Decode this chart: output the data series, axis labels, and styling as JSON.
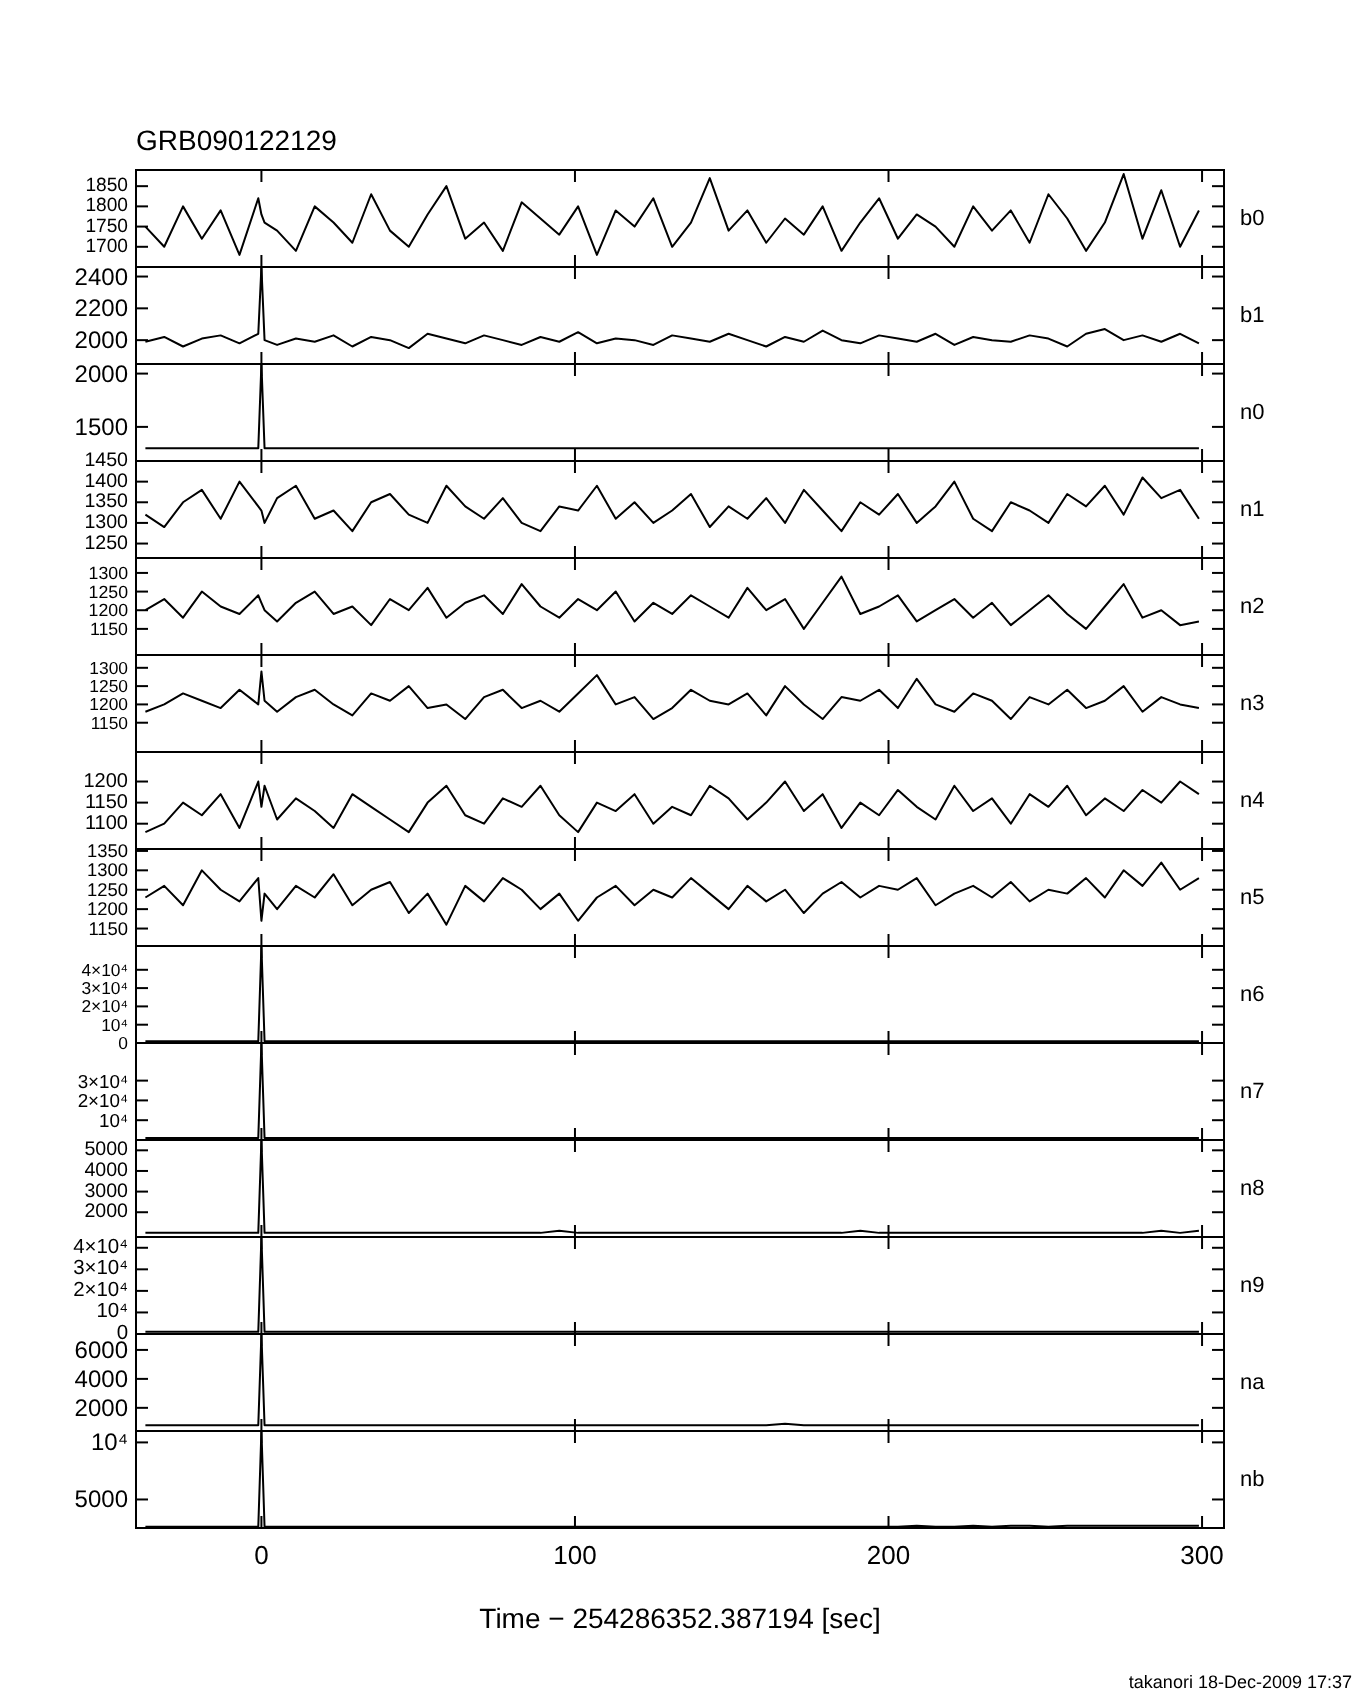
{
  "chart_data": [
    {
      "type": "line",
      "title": "GRB090122129",
      "y2label": "b0",
      "tick_labels": "y",
      "xlim": [
        -40,
        307
      ],
      "xticks": [
        0,
        100,
        200,
        300
      ],
      "ylim": [
        1650,
        1890
      ],
      "yticks": [
        1700,
        1750,
        1800,
        1850
      ],
      "x": [
        -37,
        -31,
        -25,
        -19,
        -13,
        -7,
        -1,
        0,
        1,
        5,
        11,
        17,
        23,
        29,
        35,
        41,
        47,
        53,
        59,
        65,
        71,
        77,
        83,
        89,
        95,
        101,
        107,
        113,
        119,
        125,
        131,
        137,
        143,
        149,
        155,
        161,
        167,
        173,
        179,
        185,
        191,
        197,
        203,
        209,
        215,
        221,
        227,
        233,
        239,
        245,
        251,
        257,
        263,
        269,
        275,
        281,
        287,
        293,
        299
      ],
      "series": [
        {
          "color": "#000000",
          "values": [
            1750,
            1700,
            1800,
            1720,
            1790,
            1680,
            1820,
            1780,
            1760,
            1740,
            1690,
            1800,
            1760,
            1710,
            1830,
            1740,
            1700,
            1780,
            1850,
            1720,
            1760,
            1690,
            1810,
            1770,
            1730,
            1800,
            1680,
            1790,
            1750,
            1820,
            1700,
            1760,
            1870,
            1740,
            1790,
            1710,
            1770,
            1730,
            1800,
            1690,
            1760,
            1820,
            1720,
            1780,
            1750,
            1700,
            1800,
            1740,
            1790,
            1710,
            1830,
            1770,
            1690,
            1760,
            1880,
            1720,
            1840,
            1700,
            1790
          ]
        }
      ]
    },
    {
      "type": "line",
      "y2label": "b1",
      "tick_labels": "y",
      "xlim": [
        -40,
        307
      ],
      "xticks": [
        0,
        100,
        200,
        300
      ],
      "ylim": [
        1850,
        2460
      ],
      "yticks": [
        2000,
        2200,
        2400
      ],
      "x": [
        -37,
        -31,
        -25,
        -19,
        -13,
        -7,
        -1,
        0,
        1,
        5,
        11,
        17,
        23,
        29,
        35,
        41,
        47,
        53,
        59,
        65,
        71,
        77,
        83,
        89,
        95,
        101,
        107,
        113,
        119,
        125,
        131,
        137,
        143,
        149,
        155,
        161,
        167,
        173,
        179,
        185,
        191,
        197,
        203,
        209,
        215,
        221,
        227,
        233,
        239,
        245,
        251,
        257,
        263,
        269,
        275,
        281,
        287,
        293,
        299
      ],
      "series": [
        {
          "color": "#000000",
          "values": [
            1990,
            2020,
            1960,
            2010,
            2030,
            1980,
            2040,
            2460,
            2000,
            1970,
            2010,
            1990,
            2030,
            1960,
            2020,
            2000,
            1950,
            2040,
            2010,
            1980,
            2030,
            2000,
            1970,
            2020,
            1990,
            2050,
            1980,
            2010,
            2000,
            1970,
            2030,
            2010,
            1990,
            2040,
            2000,
            1960,
            2020,
            1990,
            2060,
            2000,
            1980,
            2030,
            2010,
            1990,
            2040,
            1970,
            2020,
            2000,
            1990,
            2030,
            2010,
            1960,
            2040,
            2070,
            2000,
            2030,
            1990,
            2040,
            1980
          ]
        }
      ]
    },
    {
      "type": "line",
      "y2label": "n0",
      "tick_labels": "y",
      "xlim": [
        -40,
        307
      ],
      "xticks": [
        0,
        100,
        200,
        300
      ],
      "ylim": [
        1180,
        2090
      ],
      "yticks": [
        1500,
        2000
      ],
      "x": [
        -37,
        -31,
        -25,
        -19,
        -13,
        -7,
        -1,
        0,
        1,
        5,
        11,
        17,
        23,
        29,
        35,
        41,
        47,
        53,
        59,
        65,
        71,
        77,
        83,
        89,
        95,
        101,
        107,
        113,
        119,
        125,
        131,
        137,
        143,
        149,
        155,
        161,
        167,
        173,
        179,
        185,
        191,
        197,
        203,
        209,
        215,
        221,
        227,
        233,
        239,
        245,
        251,
        257,
        263,
        269,
        275,
        281,
        287,
        293,
        299
      ],
      "series": [
        {
          "color": "#000000",
          "values": [
            1300,
            1300,
            1300,
            1300,
            1300,
            1300,
            1300,
            2090,
            1300,
            1300,
            1300,
            1300,
            1300,
            1300,
            1300,
            1300,
            1300,
            1300,
            1300,
            1300,
            1300,
            1300,
            1300,
            1300,
            1300,
            1300,
            1300,
            1300,
            1300,
            1300,
            1300,
            1300,
            1300,
            1300,
            1300,
            1300,
            1300,
            1300,
            1300,
            1300,
            1300,
            1300,
            1300,
            1300,
            1300,
            1300,
            1300,
            1300,
            1300,
            1300,
            1300,
            1300,
            1300,
            1300,
            1300,
            1300,
            1300,
            1300,
            1300
          ]
        }
      ]
    },
    {
      "type": "line",
      "y2label": "n1",
      "tick_labels": "y",
      "xlim": [
        -40,
        307
      ],
      "xticks": [
        0,
        100,
        200,
        300
      ],
      "ylim": [
        1215,
        1450
      ],
      "yticks": [
        1250,
        1300,
        1350,
        1400,
        1450
      ],
      "x": [
        -37,
        -31,
        -25,
        -19,
        -13,
        -7,
        -1,
        0,
        1,
        5,
        11,
        17,
        23,
        29,
        35,
        41,
        47,
        53,
        59,
        65,
        71,
        77,
        83,
        89,
        95,
        101,
        107,
        113,
        119,
        125,
        131,
        137,
        143,
        149,
        155,
        161,
        167,
        173,
        179,
        185,
        191,
        197,
        203,
        209,
        215,
        221,
        227,
        233,
        239,
        245,
        251,
        257,
        263,
        269,
        275,
        281,
        287,
        293,
        299
      ],
      "series": [
        {
          "color": "#000000",
          "values": [
            1320,
            1290,
            1350,
            1380,
            1310,
            1400,
            1340,
            1330,
            1300,
            1360,
            1390,
            1310,
            1330,
            1280,
            1350,
            1370,
            1320,
            1300,
            1390,
            1340,
            1310,
            1360,
            1300,
            1280,
            1340,
            1330,
            1390,
            1310,
            1350,
            1300,
            1330,
            1370,
            1290,
            1340,
            1310,
            1360,
            1300,
            1380,
            1330,
            1280,
            1350,
            1320,
            1370,
            1300,
            1340,
            1400,
            1310,
            1280,
            1350,
            1330,
            1300,
            1370,
            1340,
            1390,
            1320,
            1410,
            1360,
            1380,
            1310
          ]
        }
      ]
    },
    {
      "type": "line",
      "y2label": "n2",
      "tick_labels": "y",
      "xlim": [
        -40,
        307
      ],
      "xticks": [
        0,
        100,
        200,
        300
      ],
      "ylim": [
        1080,
        1340
      ],
      "yticks": [
        1150,
        1200,
        1250,
        1300
      ],
      "x": [
        -37,
        -31,
        -25,
        -19,
        -13,
        -7,
        -1,
        0,
        1,
        5,
        11,
        17,
        23,
        29,
        35,
        41,
        47,
        53,
        59,
        65,
        71,
        77,
        83,
        89,
        95,
        101,
        107,
        113,
        119,
        125,
        131,
        137,
        143,
        149,
        155,
        161,
        167,
        173,
        179,
        185,
        191,
        197,
        203,
        209,
        215,
        221,
        227,
        233,
        239,
        245,
        251,
        257,
        263,
        269,
        275,
        281,
        287,
        293,
        299
      ],
      "series": [
        {
          "color": "#000000",
          "values": [
            1200,
            1230,
            1180,
            1250,
            1210,
            1190,
            1240,
            1220,
            1200,
            1170,
            1220,
            1250,
            1190,
            1210,
            1160,
            1230,
            1200,
            1260,
            1180,
            1220,
            1240,
            1190,
            1270,
            1210,
            1180,
            1230,
            1200,
            1250,
            1170,
            1220,
            1190,
            1240,
            1210,
            1180,
            1260,
            1200,
            1230,
            1150,
            1220,
            1290,
            1190,
            1210,
            1240,
            1170,
            1200,
            1230,
            1180,
            1220,
            1160,
            1200,
            1240,
            1190,
            1150,
            1210,
            1270,
            1180,
            1200,
            1160,
            1170
          ]
        }
      ]
    },
    {
      "type": "line",
      "y2label": "n3",
      "tick_labels": "y",
      "xlim": [
        -40,
        307
      ],
      "xticks": [
        0,
        100,
        200,
        300
      ],
      "ylim": [
        1070,
        1335
      ],
      "yticks": [
        1150,
        1200,
        1250,
        1300
      ],
      "x": [
        -37,
        -31,
        -25,
        -19,
        -13,
        -7,
        -1,
        0,
        1,
        5,
        11,
        17,
        23,
        29,
        35,
        41,
        47,
        53,
        59,
        65,
        71,
        77,
        83,
        89,
        95,
        101,
        107,
        113,
        119,
        125,
        131,
        137,
        143,
        149,
        155,
        161,
        167,
        173,
        179,
        185,
        191,
        197,
        203,
        209,
        215,
        221,
        227,
        233,
        239,
        245,
        251,
        257,
        263,
        269,
        275,
        281,
        287,
        293,
        299
      ],
      "series": [
        {
          "color": "#000000",
          "values": [
            1180,
            1200,
            1230,
            1210,
            1190,
            1240,
            1200,
            1290,
            1210,
            1180,
            1220,
            1240,
            1200,
            1170,
            1230,
            1210,
            1250,
            1190,
            1200,
            1160,
            1220,
            1240,
            1190,
            1210,
            1180,
            1230,
            1280,
            1200,
            1220,
            1160,
            1190,
            1240,
            1210,
            1200,
            1230,
            1170,
            1250,
            1200,
            1160,
            1220,
            1210,
            1240,
            1190,
            1270,
            1200,
            1180,
            1230,
            1210,
            1160,
            1220,
            1200,
            1240,
            1190,
            1210,
            1250,
            1180,
            1220,
            1200,
            1190
          ]
        }
      ]
    },
    {
      "type": "line",
      "y2label": "n4",
      "tick_labels": "y",
      "xlim": [
        -40,
        307
      ],
      "xticks": [
        0,
        100,
        200,
        300
      ],
      "ylim": [
        1040,
        1270
      ],
      "yticks": [
        1100,
        1150,
        1200
      ],
      "x": [
        -37,
        -31,
        -25,
        -19,
        -13,
        -7,
        -1,
        0,
        1,
        5,
        11,
        17,
        23,
        29,
        35,
        41,
        47,
        53,
        59,
        65,
        71,
        77,
        83,
        89,
        95,
        101,
        107,
        113,
        119,
        125,
        131,
        137,
        143,
        149,
        155,
        161,
        167,
        173,
        179,
        185,
        191,
        197,
        203,
        209,
        215,
        221,
        227,
        233,
        239,
        245,
        251,
        257,
        263,
        269,
        275,
        281,
        287,
        293,
        299
      ],
      "series": [
        {
          "color": "#000000",
          "values": [
            1080,
            1100,
            1150,
            1120,
            1170,
            1090,
            1200,
            1140,
            1190,
            1110,
            1160,
            1130,
            1090,
            1170,
            1140,
            1110,
            1080,
            1150,
            1190,
            1120,
            1100,
            1160,
            1140,
            1190,
            1120,
            1080,
            1150,
            1130,
            1170,
            1100,
            1140,
            1120,
            1190,
            1160,
            1110,
            1150,
            1200,
            1130,
            1170,
            1090,
            1150,
            1120,
            1180,
            1140,
            1110,
            1190,
            1130,
            1160,
            1100,
            1170,
            1140,
            1190,
            1120,
            1160,
            1130,
            1180,
            1150,
            1200,
            1170
          ]
        }
      ]
    },
    {
      "type": "line",
      "y2label": "n5",
      "tick_labels": "y",
      "xlim": [
        -40,
        307
      ],
      "xticks": [
        0,
        100,
        200,
        300
      ],
      "ylim": [
        1105,
        1355
      ],
      "yticks": [
        1150,
        1200,
        1250,
        1300,
        1350
      ],
      "x": [
        -37,
        -31,
        -25,
        -19,
        -13,
        -7,
        -1,
        0,
        1,
        5,
        11,
        17,
        23,
        29,
        35,
        41,
        47,
        53,
        59,
        65,
        71,
        77,
        83,
        89,
        95,
        101,
        107,
        113,
        119,
        125,
        131,
        137,
        143,
        149,
        155,
        161,
        167,
        173,
        179,
        185,
        191,
        197,
        203,
        209,
        215,
        221,
        227,
        233,
        239,
        245,
        251,
        257,
        263,
        269,
        275,
        281,
        287,
        293,
        299
      ],
      "series": [
        {
          "color": "#000000",
          "values": [
            1230,
            1260,
            1210,
            1300,
            1250,
            1220,
            1280,
            1170,
            1240,
            1200,
            1260,
            1230,
            1290,
            1210,
            1250,
            1270,
            1190,
            1240,
            1160,
            1260,
            1220,
            1280,
            1250,
            1200,
            1240,
            1170,
            1230,
            1260,
            1210,
            1250,
            1230,
            1280,
            1240,
            1200,
            1260,
            1220,
            1250,
            1190,
            1240,
            1270,
            1230,
            1260,
            1250,
            1280,
            1210,
            1240,
            1260,
            1230,
            1270,
            1220,
            1250,
            1240,
            1280,
            1230,
            1300,
            1260,
            1320,
            1250,
            1280
          ]
        }
      ]
    },
    {
      "type": "line",
      "y2label": "n6",
      "tick_labels": "y",
      "xlim": [
        -40,
        307
      ],
      "xticks": [
        0,
        100,
        200,
        300
      ],
      "ylim": [
        0,
        53000
      ],
      "yticks": [
        0,
        {
          "value": 10000,
          "label": "10⁴"
        },
        {
          "value": 20000,
          "label": "2×10⁴"
        },
        {
          "value": 30000,
          "label": "3×10⁴"
        },
        {
          "value": 40000,
          "label": "4×10⁴"
        }
      ],
      "x": [
        -37,
        -31,
        -25,
        -19,
        -13,
        -7,
        -1,
        0,
        1,
        5,
        11,
        17,
        23,
        29,
        35,
        41,
        47,
        53,
        59,
        65,
        71,
        77,
        83,
        89,
        95,
        101,
        107,
        113,
        119,
        125,
        131,
        137,
        143,
        149,
        155,
        161,
        167,
        173,
        179,
        185,
        191,
        197,
        203,
        209,
        215,
        221,
        227,
        233,
        239,
        245,
        251,
        257,
        263,
        269,
        275,
        281,
        287,
        293,
        299
      ],
      "series": [
        {
          "color": "#000000",
          "values": [
            1000,
            1000,
            1000,
            1000,
            1000,
            1000,
            1000,
            53000,
            1000,
            1000,
            1000,
            1000,
            1000,
            1000,
            1000,
            1000,
            1000,
            1000,
            1000,
            1000,
            1000,
            1000,
            1000,
            1000,
            1000,
            1000,
            1000,
            1000,
            1000,
            1000,
            1000,
            1000,
            1000,
            1000,
            1000,
            1000,
            1000,
            1000,
            1000,
            1000,
            1000,
            1000,
            1000,
            1000,
            1000,
            1000,
            1000,
            1000,
            1000,
            1000,
            1000,
            1000,
            1000,
            1000,
            1000,
            1000,
            1000,
            1000,
            1000
          ]
        }
      ]
    },
    {
      "type": "line",
      "y2label": "n7",
      "tick_labels": "y",
      "xlim": [
        -40,
        307
      ],
      "xticks": [
        0,
        100,
        200,
        300
      ],
      "ylim": [
        0,
        49000
      ],
      "yticks": [
        {
          "value": 10000,
          "label": "10⁴"
        },
        {
          "value": 20000,
          "label": "2×10⁴"
        },
        {
          "value": 30000,
          "label": "3×10⁴"
        }
      ],
      "x": [
        -37,
        -31,
        -25,
        -19,
        -13,
        -7,
        -1,
        0,
        1,
        5,
        11,
        17,
        23,
        29,
        35,
        41,
        47,
        53,
        59,
        65,
        71,
        77,
        83,
        89,
        95,
        101,
        107,
        113,
        119,
        125,
        131,
        137,
        143,
        149,
        155,
        161,
        167,
        173,
        179,
        185,
        191,
        197,
        203,
        209,
        215,
        221,
        227,
        233,
        239,
        245,
        251,
        257,
        263,
        269,
        275,
        281,
        287,
        293,
        299
      ],
      "series": [
        {
          "color": "#000000",
          "values": [
            1000,
            1000,
            1000,
            1000,
            1000,
            1000,
            1000,
            49000,
            1000,
            1000,
            1000,
            1000,
            1000,
            1000,
            1000,
            1000,
            1000,
            1000,
            1000,
            1000,
            1000,
            1000,
            1000,
            1000,
            1000,
            1000,
            1000,
            1000,
            1000,
            1000,
            1000,
            1000,
            1000,
            1000,
            1000,
            1000,
            1000,
            1000,
            1000,
            1000,
            1000,
            1000,
            1000,
            1000,
            1000,
            1000,
            1000,
            1000,
            1000,
            1000,
            1000,
            1000,
            1000,
            1000,
            1000,
            1000,
            1000,
            1000,
            1000
          ]
        }
      ]
    },
    {
      "type": "line",
      "y2label": "n8",
      "tick_labels": "y",
      "xlim": [
        -40,
        307
      ],
      "xticks": [
        0,
        100,
        200,
        300
      ],
      "ylim": [
        800,
        5500
      ],
      "yticks": [
        2000,
        3000,
        4000,
        5000
      ],
      "x": [
        -37,
        -31,
        -25,
        -19,
        -13,
        -7,
        -1,
        0,
        1,
        5,
        11,
        17,
        23,
        29,
        35,
        41,
        47,
        53,
        59,
        65,
        71,
        77,
        83,
        89,
        95,
        101,
        107,
        113,
        119,
        125,
        131,
        137,
        143,
        149,
        155,
        161,
        167,
        173,
        179,
        185,
        191,
        197,
        203,
        209,
        215,
        221,
        227,
        233,
        239,
        245,
        251,
        257,
        263,
        269,
        275,
        281,
        287,
        293,
        299
      ],
      "series": [
        {
          "color": "#000000",
          "values": [
            1000,
            1000,
            1000,
            1000,
            1000,
            1000,
            1000,
            5500,
            1000,
            1000,
            1000,
            1000,
            1000,
            1000,
            1000,
            1000,
            1000,
            1000,
            1000,
            1000,
            1000,
            1000,
            1000,
            1000,
            1100,
            1000,
            1000,
            1000,
            1000,
            1000,
            1000,
            1000,
            1000,
            1000,
            1000,
            1000,
            1000,
            1000,
            1000,
            1000,
            1100,
            1000,
            1000,
            1000,
            1000,
            1000,
            1000,
            1000,
            1000,
            1000,
            1000,
            1000,
            1000,
            1000,
            1000,
            1000,
            1100,
            1000,
            1100
          ]
        }
      ]
    },
    {
      "type": "line",
      "y2label": "n9",
      "tick_labels": "y",
      "xlim": [
        -40,
        307
      ],
      "xticks": [
        0,
        100,
        200,
        300
      ],
      "ylim": [
        0,
        45000
      ],
      "yticks": [
        0,
        {
          "value": 10000,
          "label": "10⁴"
        },
        {
          "value": 20000,
          "label": "2×10⁴"
        },
        {
          "value": 30000,
          "label": "3×10⁴"
        },
        {
          "value": 40000,
          "label": "4×10⁴"
        }
      ],
      "x": [
        -37,
        -31,
        -25,
        -19,
        -13,
        -7,
        -1,
        0,
        1,
        5,
        11,
        17,
        23,
        29,
        35,
        41,
        47,
        53,
        59,
        65,
        71,
        77,
        83,
        89,
        95,
        101,
        107,
        113,
        119,
        125,
        131,
        137,
        143,
        149,
        155,
        161,
        167,
        173,
        179,
        185,
        191,
        197,
        203,
        209,
        215,
        221,
        227,
        233,
        239,
        245,
        251,
        257,
        263,
        269,
        275,
        281,
        287,
        293,
        299
      ],
      "series": [
        {
          "color": "#000000",
          "values": [
            1000,
            1000,
            1000,
            1000,
            1000,
            1000,
            1000,
            45000,
            1000,
            1000,
            1000,
            1000,
            1000,
            1000,
            1000,
            1000,
            1000,
            1000,
            1000,
            1000,
            1000,
            1000,
            1000,
            1000,
            1000,
            1000,
            1000,
            1000,
            1000,
            1000,
            1000,
            1000,
            1000,
            1000,
            1000,
            1000,
            1000,
            1000,
            1000,
            1000,
            1000,
            1000,
            1000,
            1000,
            1000,
            1000,
            1000,
            1000,
            1000,
            1000,
            1000,
            1000,
            1000,
            1000,
            1000,
            1000,
            1000,
            1000,
            1000
          ]
        }
      ]
    },
    {
      "type": "line",
      "y2label": "na",
      "tick_labels": "y",
      "xlim": [
        -40,
        307
      ],
      "xticks": [
        0,
        100,
        200,
        300
      ],
      "ylim": [
        400,
        7100
      ],
      "yticks": [
        2000,
        4000,
        6000
      ],
      "x": [
        -37,
        -31,
        -25,
        -19,
        -13,
        -7,
        -1,
        0,
        1,
        5,
        11,
        17,
        23,
        29,
        35,
        41,
        47,
        53,
        59,
        65,
        71,
        77,
        83,
        89,
        95,
        101,
        107,
        113,
        119,
        125,
        131,
        137,
        143,
        149,
        155,
        161,
        167,
        173,
        179,
        185,
        191,
        197,
        203,
        209,
        215,
        221,
        227,
        233,
        239,
        245,
        251,
        257,
        263,
        269,
        275,
        281,
        287,
        293,
        299
      ],
      "series": [
        {
          "color": "#000000",
          "values": [
            800,
            800,
            800,
            800,
            800,
            800,
            800,
            7100,
            800,
            800,
            800,
            800,
            800,
            800,
            800,
            800,
            800,
            800,
            800,
            800,
            800,
            800,
            800,
            800,
            800,
            800,
            800,
            800,
            800,
            800,
            800,
            800,
            800,
            800,
            800,
            800,
            900,
            800,
            800,
            800,
            800,
            800,
            800,
            800,
            800,
            800,
            800,
            800,
            800,
            800,
            800,
            800,
            800,
            800,
            800,
            800,
            800,
            800,
            800
          ]
        }
      ]
    },
    {
      "type": "line",
      "y2label": "nb",
      "xlabel": "Time − 254286352.387194 [sec]",
      "annotations": [
        "takanori 18-Dec-2009 17:37"
      ],
      "xlim": [
        -40,
        307
      ],
      "xticks": [
        0,
        100,
        200,
        300
      ],
      "ylim": [
        2500,
        11000
      ],
      "yticks": [
        5000,
        {
          "value": 10000,
          "label": "10⁴"
        }
      ],
      "x": [
        -37,
        -31,
        -25,
        -19,
        -13,
        -7,
        -1,
        0,
        1,
        5,
        11,
        17,
        23,
        29,
        35,
        41,
        47,
        53,
        59,
        65,
        71,
        77,
        83,
        89,
        95,
        101,
        107,
        113,
        119,
        125,
        131,
        137,
        143,
        149,
        155,
        161,
        167,
        173,
        179,
        185,
        191,
        197,
        203,
        209,
        215,
        221,
        227,
        233,
        239,
        245,
        251,
        257,
        263,
        269,
        275,
        281,
        287,
        293,
        299
      ],
      "series": [
        {
          "color": "#000000",
          "values": [
            2600,
            2600,
            2600,
            2600,
            2600,
            2600,
            2600,
            11000,
            2600,
            2600,
            2600,
            2600,
            2600,
            2600,
            2600,
            2600,
            2600,
            2600,
            2600,
            2600,
            2600,
            2600,
            2600,
            2600,
            2600,
            2600,
            2600,
            2600,
            2600,
            2600,
            2600,
            2600,
            2600,
            2600,
            2600,
            2600,
            2600,
            2600,
            2600,
            2600,
            2600,
            2600,
            2600,
            2700,
            2600,
            2600,
            2700,
            2600,
            2700,
            2700,
            2600,
            2700,
            2700,
            2700,
            2700,
            2700,
            2700,
            2700,
            2700
          ]
        }
      ]
    }
  ]
}
